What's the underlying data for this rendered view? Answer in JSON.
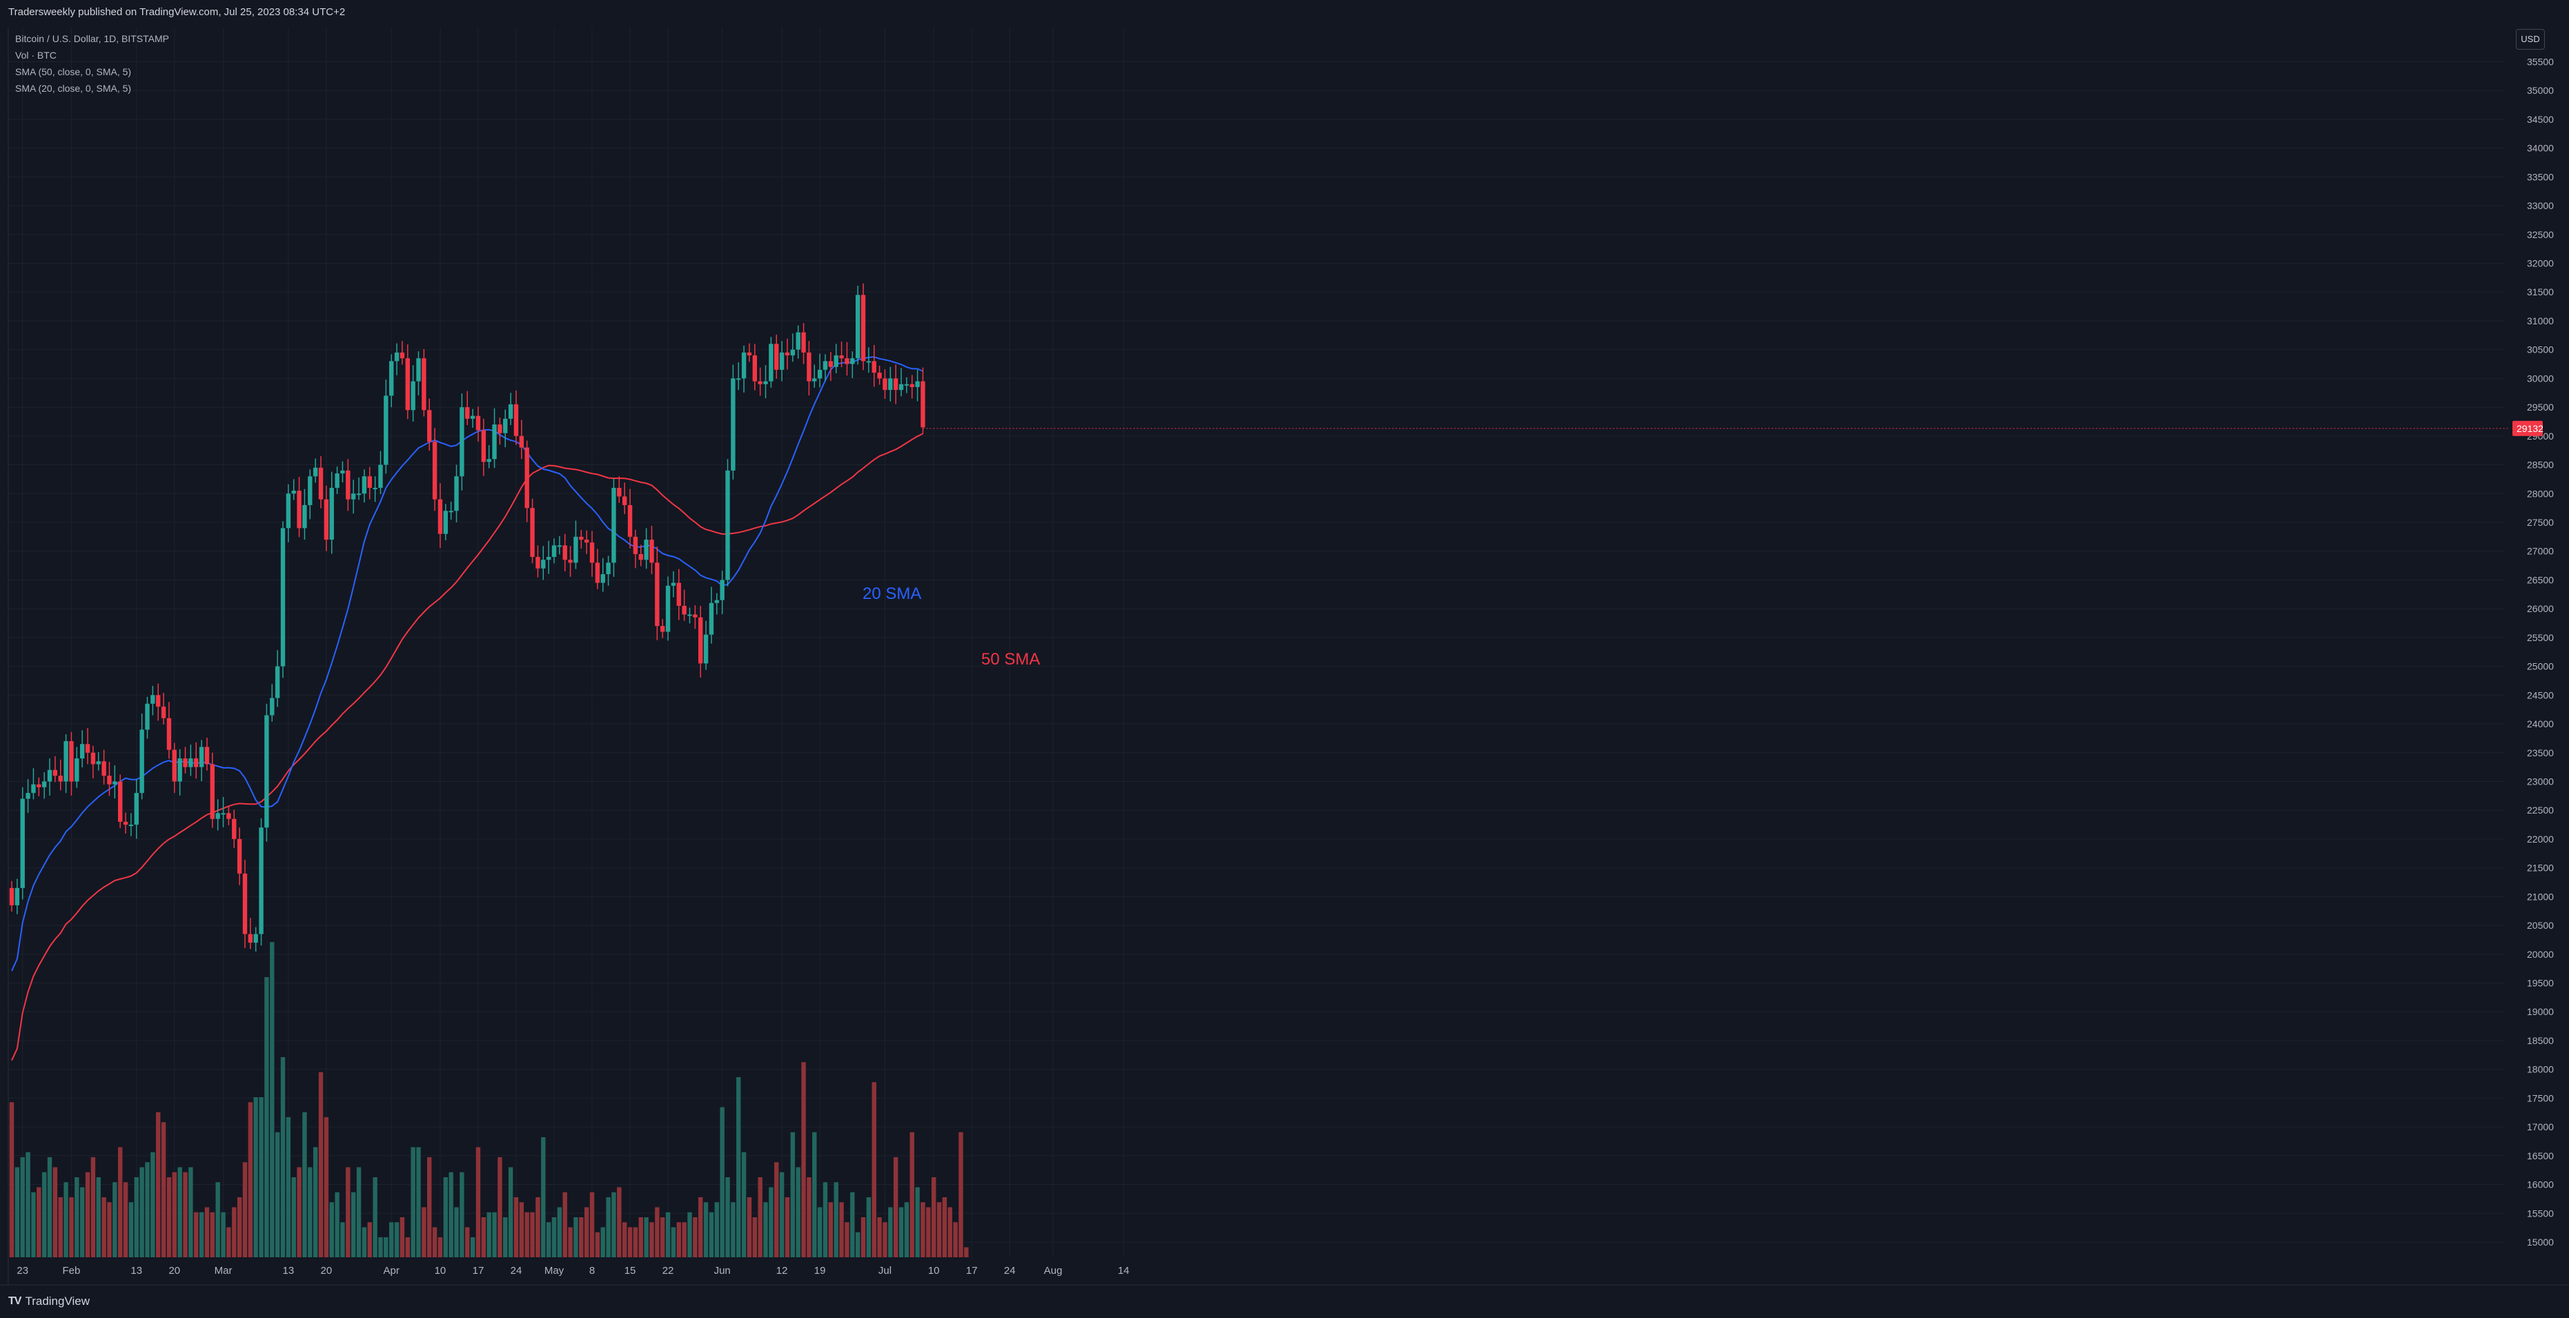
{
  "header": {
    "published": "Tradersweekly published on TradingView.com, Jul 25, 2023 08:34 UTC+2"
  },
  "legend": {
    "symbol": "Bitcoin / U.S. Dollar, 1D, BITSTAMP",
    "volume": "Vol · BTC",
    "sma50": "SMA (50, close, 0, SMA, 5)",
    "sma20": "SMA (20, close, 0, SMA, 5)"
  },
  "currency_button": "USD",
  "footer": {
    "brand": "TradingView"
  },
  "colors": {
    "up": "#26a69a",
    "down": "#f23645",
    "sma20": "#2962ff",
    "sma50": "#f23645",
    "background": "#131722"
  },
  "chart_data": {
    "type": "candlestick",
    "title": "Bitcoin / U.S. Dollar, 1D, BITSTAMP",
    "y_ticks": [
      15000,
      15500,
      16000,
      16500,
      17000,
      17500,
      18000,
      18500,
      19000,
      19500,
      20000,
      20500,
      21000,
      21500,
      22000,
      22500,
      23000,
      23500,
      24000,
      24500,
      25000,
      25500,
      26000,
      26500,
      27000,
      27500,
      28000,
      28500,
      29000,
      29500,
      30000,
      30500,
      31000,
      31500,
      32000,
      32500,
      33000,
      33500,
      34000,
      34500,
      35000,
      35500
    ],
    "x_ticks": [
      {
        "label": "23",
        "day": 2
      },
      {
        "label": "Feb",
        "day": 11
      },
      {
        "label": "13",
        "day": 23
      },
      {
        "label": "20",
        "day": 30
      },
      {
        "label": "Mar",
        "day": 39
      },
      {
        "label": "13",
        "day": 51
      },
      {
        "label": "20",
        "day": 58
      },
      {
        "label": "Apr",
        "day": 70
      },
      {
        "label": "10",
        "day": 79
      },
      {
        "label": "17",
        "day": 86
      },
      {
        "label": "24",
        "day": 93
      },
      {
        "label": "May",
        "day": 100
      },
      {
        "label": "8",
        "day": 107
      },
      {
        "label": "15",
        "day": 114
      },
      {
        "label": "22",
        "day": 121
      },
      {
        "label": "Jun",
        "day": 131
      },
      {
        "label": "12",
        "day": 142
      },
      {
        "label": "19",
        "day": 149
      },
      {
        "label": "Jul",
        "day": 161
      },
      {
        "label": "10",
        "day": 170
      },
      {
        "label": "17",
        "day": 177
      },
      {
        "label": "24",
        "day": 184
      },
      {
        "label": "Aug",
        "day": 192
      },
      {
        "label": "14",
        "day": 205
      }
    ],
    "last_price_label": "29132",
    "annotations": [
      "20 SMA",
      "50 SMA"
    ],
    "closes": [
      20850,
      21150,
      22700,
      22800,
      22950,
      22900,
      23000,
      23200,
      23100,
      23000,
      23700,
      23000,
      23400,
      23650,
      23500,
      23300,
      23350,
      23100,
      22950,
      23000,
      22300,
      22250,
      22250,
      22800,
      23900,
      24350,
      24500,
      24300,
      24100,
      23550,
      23000,
      23400,
      23250,
      23400,
      23250,
      23600,
      23300,
      22350,
      22450,
      22450,
      22350,
      22000,
      21400,
      20350,
      20200,
      20350,
      22200,
      24150,
      24450,
      25000,
      27400,
      28000,
      28050,
      27400,
      27800,
      28300,
      28450,
      27900,
      27200,
      28100,
      28350,
      28400,
      27900,
      28000,
      28000,
      28300,
      28100,
      28100,
      28500,
      29700,
      30300,
      30450,
      30350,
      29450,
      29950,
      30350,
      29450,
      28900,
      27900,
      27300,
      27700,
      27700,
      28300,
      29500,
      29300,
      29350,
      29100,
      28550,
      28600,
      29200,
      29050,
      29300,
      29550,
      29000,
      28800,
      27750,
      26900,
      26700,
      26850,
      26900,
      27100,
      27100,
      26850,
      26800,
      27250,
      27200,
      27150,
      26800,
      26450,
      26600,
      26800,
      28100,
      27950,
      27800,
      27250,
      26950,
      26850,
      27200,
      26800,
      25700,
      25600,
      26400,
      26450,
      26050,
      25900,
      25900,
      25850,
      25050,
      25550,
      26100,
      26150,
      26500,
      28400,
      30000,
      30000,
      30450,
      30400,
      29950,
      29900,
      29950,
      30600,
      30150,
      30450,
      30400,
      30500,
      30800,
      30450,
      29950,
      30000,
      30150,
      30300,
      30200,
      30400,
      30350,
      30250,
      30350,
      31450,
      30300,
      30300,
      30100,
      30000,
      29800,
      30000,
      29800,
      29900,
      29900,
      29850,
      29950,
      29150
    ],
    "opens": [
      21150,
      20850,
      21150,
      22700,
      22800,
      22950,
      22900,
      23000,
      23200,
      23100,
      23000,
      23700,
      23000,
      23400,
      23650,
      23500,
      23300,
      23350,
      23100,
      22950,
      23000,
      22300,
      22250,
      22250,
      22800,
      23900,
      24350,
      24500,
      24300,
      24100,
      23550,
      23000,
      23400,
      23250,
      23400,
      23250,
      23600,
      23300,
      22350,
      22450,
      22450,
      22350,
      22000,
      21400,
      20350,
      20200,
      20350,
      22200,
      24150,
      24450,
      25000,
      27400,
      28000,
      28050,
      27400,
      27800,
      28300,
      28450,
      27900,
      27200,
      28100,
      28350,
      28400,
      27900,
      28000,
      28000,
      28300,
      28100,
      28100,
      28500,
      29700,
      30300,
      30450,
      30350,
      29450,
      29950,
      30350,
      29450,
      28900,
      27900,
      27300,
      27700,
      27700,
      28300,
      29500,
      29300,
      29350,
      29100,
      28550,
      28600,
      29200,
      29050,
      29300,
      29550,
      29000,
      28800,
      27750,
      26900,
      26700,
      26850,
      26900,
      27100,
      27100,
      26850,
      26800,
      27250,
      27200,
      27150,
      26800,
      26450,
      26600,
      26800,
      28100,
      27950,
      27800,
      27250,
      26950,
      26850,
      27200,
      26800,
      25700,
      25600,
      26400,
      26450,
      26050,
      25900,
      25900,
      25850,
      25050,
      25550,
      26100,
      26150,
      26500,
      28400,
      30000,
      30000,
      30450,
      30400,
      29950,
      29900,
      29950,
      30600,
      30150,
      30450,
      30400,
      30500,
      30800,
      30450,
      29950,
      30000,
      30150,
      30300,
      30200,
      30400,
      30350,
      30250,
      30350,
      31450,
      30300,
      30300,
      30100,
      30000,
      29800,
      30000,
      29800,
      29900,
      29900,
      29850,
      29950
    ],
    "volumes": [
      1.55,
      0.9,
      1.0,
      1.05,
      0.65,
      0.7,
      0.85,
      1.0,
      0.9,
      0.6,
      0.75,
      0.6,
      0.8,
      0.7,
      0.85,
      1.0,
      0.8,
      0.6,
      0.55,
      0.75,
      1.1,
      0.75,
      0.55,
      0.8,
      0.9,
      0.95,
      1.05,
      1.45,
      1.35,
      0.8,
      0.85,
      0.9,
      0.85,
      0.9,
      0.45,
      0.45,
      0.5,
      0.45,
      0.75,
      0.45,
      0.3,
      0.5,
      0.6,
      0.95,
      1.55,
      1.6,
      1.6,
      2.8,
      3.15,
      1.25,
      2.0,
      1.4,
      0.8,
      0.9,
      1.45,
      0.9,
      1.1,
      1.85,
      1.4,
      0.55,
      0.65,
      0.35,
      0.9,
      0.65,
      0.9,
      0.3,
      0.35,
      0.8,
      0.2,
      0.2,
      0.35,
      0.35,
      0.4,
      0.2,
      1.1,
      1.1,
      0.5,
      1.0,
      0.3,
      0.2,
      0.8,
      0.85,
      0.5,
      0.85,
      0.3,
      0.2,
      1.1,
      0.4,
      0.45,
      0.45,
      1.0,
      0.4,
      0.9,
      0.6,
      0.55,
      0.45,
      0.45,
      0.6,
      1.2,
      0.35,
      0.4,
      0.5,
      0.65,
      0.3,
      0.4,
      0.4,
      0.5,
      0.65,
      0.25,
      0.3,
      0.6,
      0.65,
      0.7,
      0.35,
      0.3,
      0.3,
      0.4,
      0.4,
      0.35,
      0.5,
      0.4,
      0.45,
      0.3,
      0.35,
      0.35,
      0.45,
      0.4,
      0.6,
      0.55,
      0.45,
      0.55,
      1.5,
      0.8,
      0.55,
      1.8,
      1.05,
      0.6,
      0.4,
      0.8,
      0.55,
      0.7,
      0.95,
      0.85,
      0.6,
      1.25,
      0.9,
      1.95,
      0.8,
      1.25,
      0.5,
      0.75,
      0.55,
      0.75,
      0.55,
      0.35,
      0.65,
      0.25,
      0.4,
      0.6,
      1.75,
      0.4,
      0.35,
      0.5,
      1.0,
      0.5,
      0.55,
      1.25,
      0.7,
      0.55,
      0.5,
      0.8,
      0.55,
      0.6,
      0.5,
      0.35,
      1.25,
      0.1
    ]
  }
}
